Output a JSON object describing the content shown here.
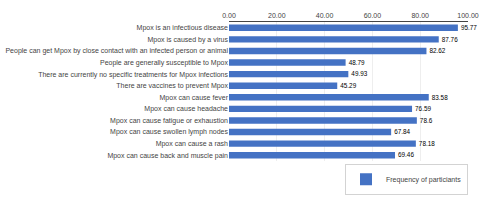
{
  "chart_data": {
    "type": "bar",
    "orientation": "horizontal",
    "categories": [
      "Mpox can cause back and muscle pain",
      "Mpox can cause a rash",
      "Mpox can cause swollen lymph nodes",
      "Mpox can cause fatigue or exhaustion",
      "Mpox can cause headache",
      "Mpox can cause fever",
      "There are vaccines to prevent Mpox",
      "There are currently no specific treatments for Mpox infections",
      "People are generally susceptible to Mpox",
      "People can get Mpox by close contact with an infected person or animal",
      "Mpox is caused by a virus",
      "Mpox is an infectious disease"
    ],
    "series": [
      {
        "name": "Frequency of particiants",
        "color": "#4472C4",
        "values": [
          69.46,
          78.18,
          67.84,
          78.6,
          76.59,
          83.58,
          45.29,
          49.93,
          48.79,
          82.62,
          87.76,
          95.77
        ]
      }
    ],
    "xlim": [
      0,
      100
    ],
    "xticks": [
      {
        "value": 0,
        "label": "0.00"
      },
      {
        "value": 20,
        "label": "20.00"
      },
      {
        "value": 40,
        "label": "40.00"
      },
      {
        "value": 60,
        "label": "60.00"
      },
      {
        "value": 80,
        "label": "80.00"
      },
      {
        "value": 100,
        "label": "100.00"
      }
    ],
    "data_labels": true,
    "grid": true,
    "legend": "lower right"
  }
}
